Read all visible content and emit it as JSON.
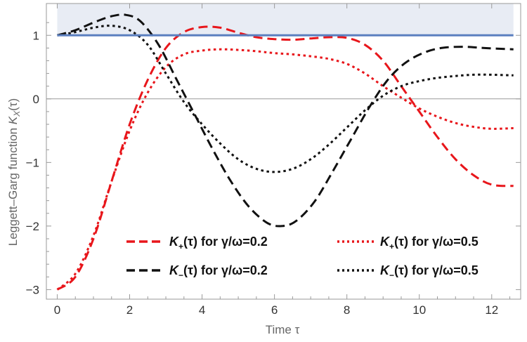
{
  "chart_data": {
    "type": "line",
    "title": "",
    "xlabel": "Time τ",
    "ylabel": "Leggett–Garg function K_X(τ)",
    "ylabel_main": "Leggett–Garg function ",
    "ylabel_symbol": "K",
    "ylabel_sub": "X",
    "ylabel_arg": "(τ)",
    "xlim": [
      -0.3,
      12.8
    ],
    "ylim": [
      -3.15,
      1.5
    ],
    "xticks": [
      0,
      2,
      4,
      6,
      8,
      10,
      12
    ],
    "xtick_labels": [
      "0",
      "2",
      "4",
      "6",
      "8",
      "10",
      "12"
    ],
    "yticks": [
      -3,
      -2,
      -1,
      0,
      1
    ],
    "ytick_labels": [
      "−3",
      "−2",
      "−1",
      "0",
      "1"
    ],
    "shaded_region": {
      "y_from": 1,
      "y_to": 1.5,
      "color": "#e8ecf4"
    },
    "bound_line": {
      "y": 1,
      "color": "#5b7fbf"
    },
    "zero_line": {
      "y": 0,
      "color": "#999999"
    },
    "legend_placement": "bottom",
    "series": [
      {
        "name": "K₊(τ) for γ/ω=0.2",
        "label_symbol": "K",
        "label_sub": "+",
        "label_rest": "(τ) for γ/ω=0.2",
        "color": "#e8161b",
        "style": "dashed",
        "points": [
          [
            0,
            -3.0
          ],
          [
            0.5,
            -2.8
          ],
          [
            1.0,
            -2.2
          ],
          [
            1.5,
            -1.3
          ],
          [
            2.0,
            -0.4
          ],
          [
            2.5,
            0.3
          ],
          [
            3.0,
            0.8
          ],
          [
            3.5,
            1.05
          ],
          [
            4.0,
            1.13
          ],
          [
            4.5,
            1.12
          ],
          [
            5.0,
            1.04
          ],
          [
            5.5,
            0.97
          ],
          [
            6.0,
            0.94
          ],
          [
            6.5,
            0.93
          ],
          [
            7.0,
            0.95
          ],
          [
            7.5,
            0.97
          ],
          [
            8.0,
            0.96
          ],
          [
            8.5,
            0.85
          ],
          [
            9.0,
            0.6
          ],
          [
            9.5,
            0.2
          ],
          [
            10.0,
            -0.2
          ],
          [
            10.5,
            -0.6
          ],
          [
            11.0,
            -0.95
          ],
          [
            11.5,
            -1.2
          ],
          [
            12.0,
            -1.35
          ],
          [
            12.6,
            -1.37
          ]
        ]
      },
      {
        "name": "K₊(τ) for γ/ω=0.5",
        "label_symbol": "K",
        "label_sub": "+",
        "label_rest": "(τ) for γ/ω=0.5",
        "color": "#e8161b",
        "style": "dotted",
        "points": [
          [
            0,
            -3.0
          ],
          [
            0.5,
            -2.75
          ],
          [
            1.0,
            -2.15
          ],
          [
            1.5,
            -1.3
          ],
          [
            2.0,
            -0.5
          ],
          [
            2.5,
            0.1
          ],
          [
            3.0,
            0.5
          ],
          [
            3.5,
            0.7
          ],
          [
            4.0,
            0.76
          ],
          [
            4.5,
            0.78
          ],
          [
            5.0,
            0.77
          ],
          [
            5.5,
            0.75
          ],
          [
            6.0,
            0.72
          ],
          [
            6.5,
            0.7
          ],
          [
            7.0,
            0.67
          ],
          [
            7.5,
            0.63
          ],
          [
            8.0,
            0.55
          ],
          [
            8.5,
            0.4
          ],
          [
            9.0,
            0.2
          ],
          [
            9.5,
            0.02
          ],
          [
            10.0,
            -0.15
          ],
          [
            10.5,
            -0.28
          ],
          [
            11.0,
            -0.38
          ],
          [
            11.5,
            -0.44
          ],
          [
            12.0,
            -0.47
          ],
          [
            12.6,
            -0.46
          ]
        ]
      },
      {
        "name": "K₋(τ) for γ/ω=0.2",
        "label_symbol": "K",
        "label_sub": "−",
        "label_rest": "(τ) for γ/ω=0.2",
        "color": "#111111",
        "style": "dashed",
        "points": [
          [
            0,
            1.0
          ],
          [
            0.5,
            1.08
          ],
          [
            1.0,
            1.2
          ],
          [
            1.5,
            1.3
          ],
          [
            1.9,
            1.32
          ],
          [
            2.3,
            1.22
          ],
          [
            2.8,
            0.85
          ],
          [
            3.3,
            0.3
          ],
          [
            3.8,
            -0.25
          ],
          [
            4.3,
            -0.8
          ],
          [
            4.8,
            -1.3
          ],
          [
            5.3,
            -1.7
          ],
          [
            5.8,
            -1.95
          ],
          [
            6.2,
            -2.0
          ],
          [
            6.6,
            -1.92
          ],
          [
            7.1,
            -1.62
          ],
          [
            7.6,
            -1.15
          ],
          [
            8.1,
            -0.65
          ],
          [
            8.6,
            -0.15
          ],
          [
            9.1,
            0.28
          ],
          [
            9.6,
            0.56
          ],
          [
            10.1,
            0.72
          ],
          [
            10.6,
            0.8
          ],
          [
            11.2,
            0.82
          ],
          [
            11.8,
            0.8
          ],
          [
            12.6,
            0.78
          ]
        ]
      },
      {
        "name": "K₋(τ) for γ/ω=0.5",
        "label_symbol": "K",
        "label_sub": "−",
        "label_rest": "(τ) for γ/ω=0.5",
        "color": "#111111",
        "style": "dotted",
        "points": [
          [
            0,
            1.0
          ],
          [
            0.5,
            1.05
          ],
          [
            1.0,
            1.12
          ],
          [
            1.5,
            1.15
          ],
          [
            2.0,
            1.08
          ],
          [
            2.5,
            0.85
          ],
          [
            3.0,
            0.4
          ],
          [
            3.5,
            -0.05
          ],
          [
            4.0,
            -0.4
          ],
          [
            4.5,
            -0.7
          ],
          [
            5.0,
            -0.95
          ],
          [
            5.5,
            -1.1
          ],
          [
            6.0,
            -1.15
          ],
          [
            6.5,
            -1.1
          ],
          [
            7.0,
            -0.95
          ],
          [
            7.5,
            -0.72
          ],
          [
            8.0,
            -0.45
          ],
          [
            8.5,
            -0.18
          ],
          [
            9.0,
            0.05
          ],
          [
            9.5,
            0.2
          ],
          [
            10.0,
            0.28
          ],
          [
            10.5,
            0.33
          ],
          [
            11.0,
            0.36
          ],
          [
            11.5,
            0.38
          ],
          [
            12.0,
            0.38
          ],
          [
            12.6,
            0.37
          ]
        ]
      }
    ]
  }
}
